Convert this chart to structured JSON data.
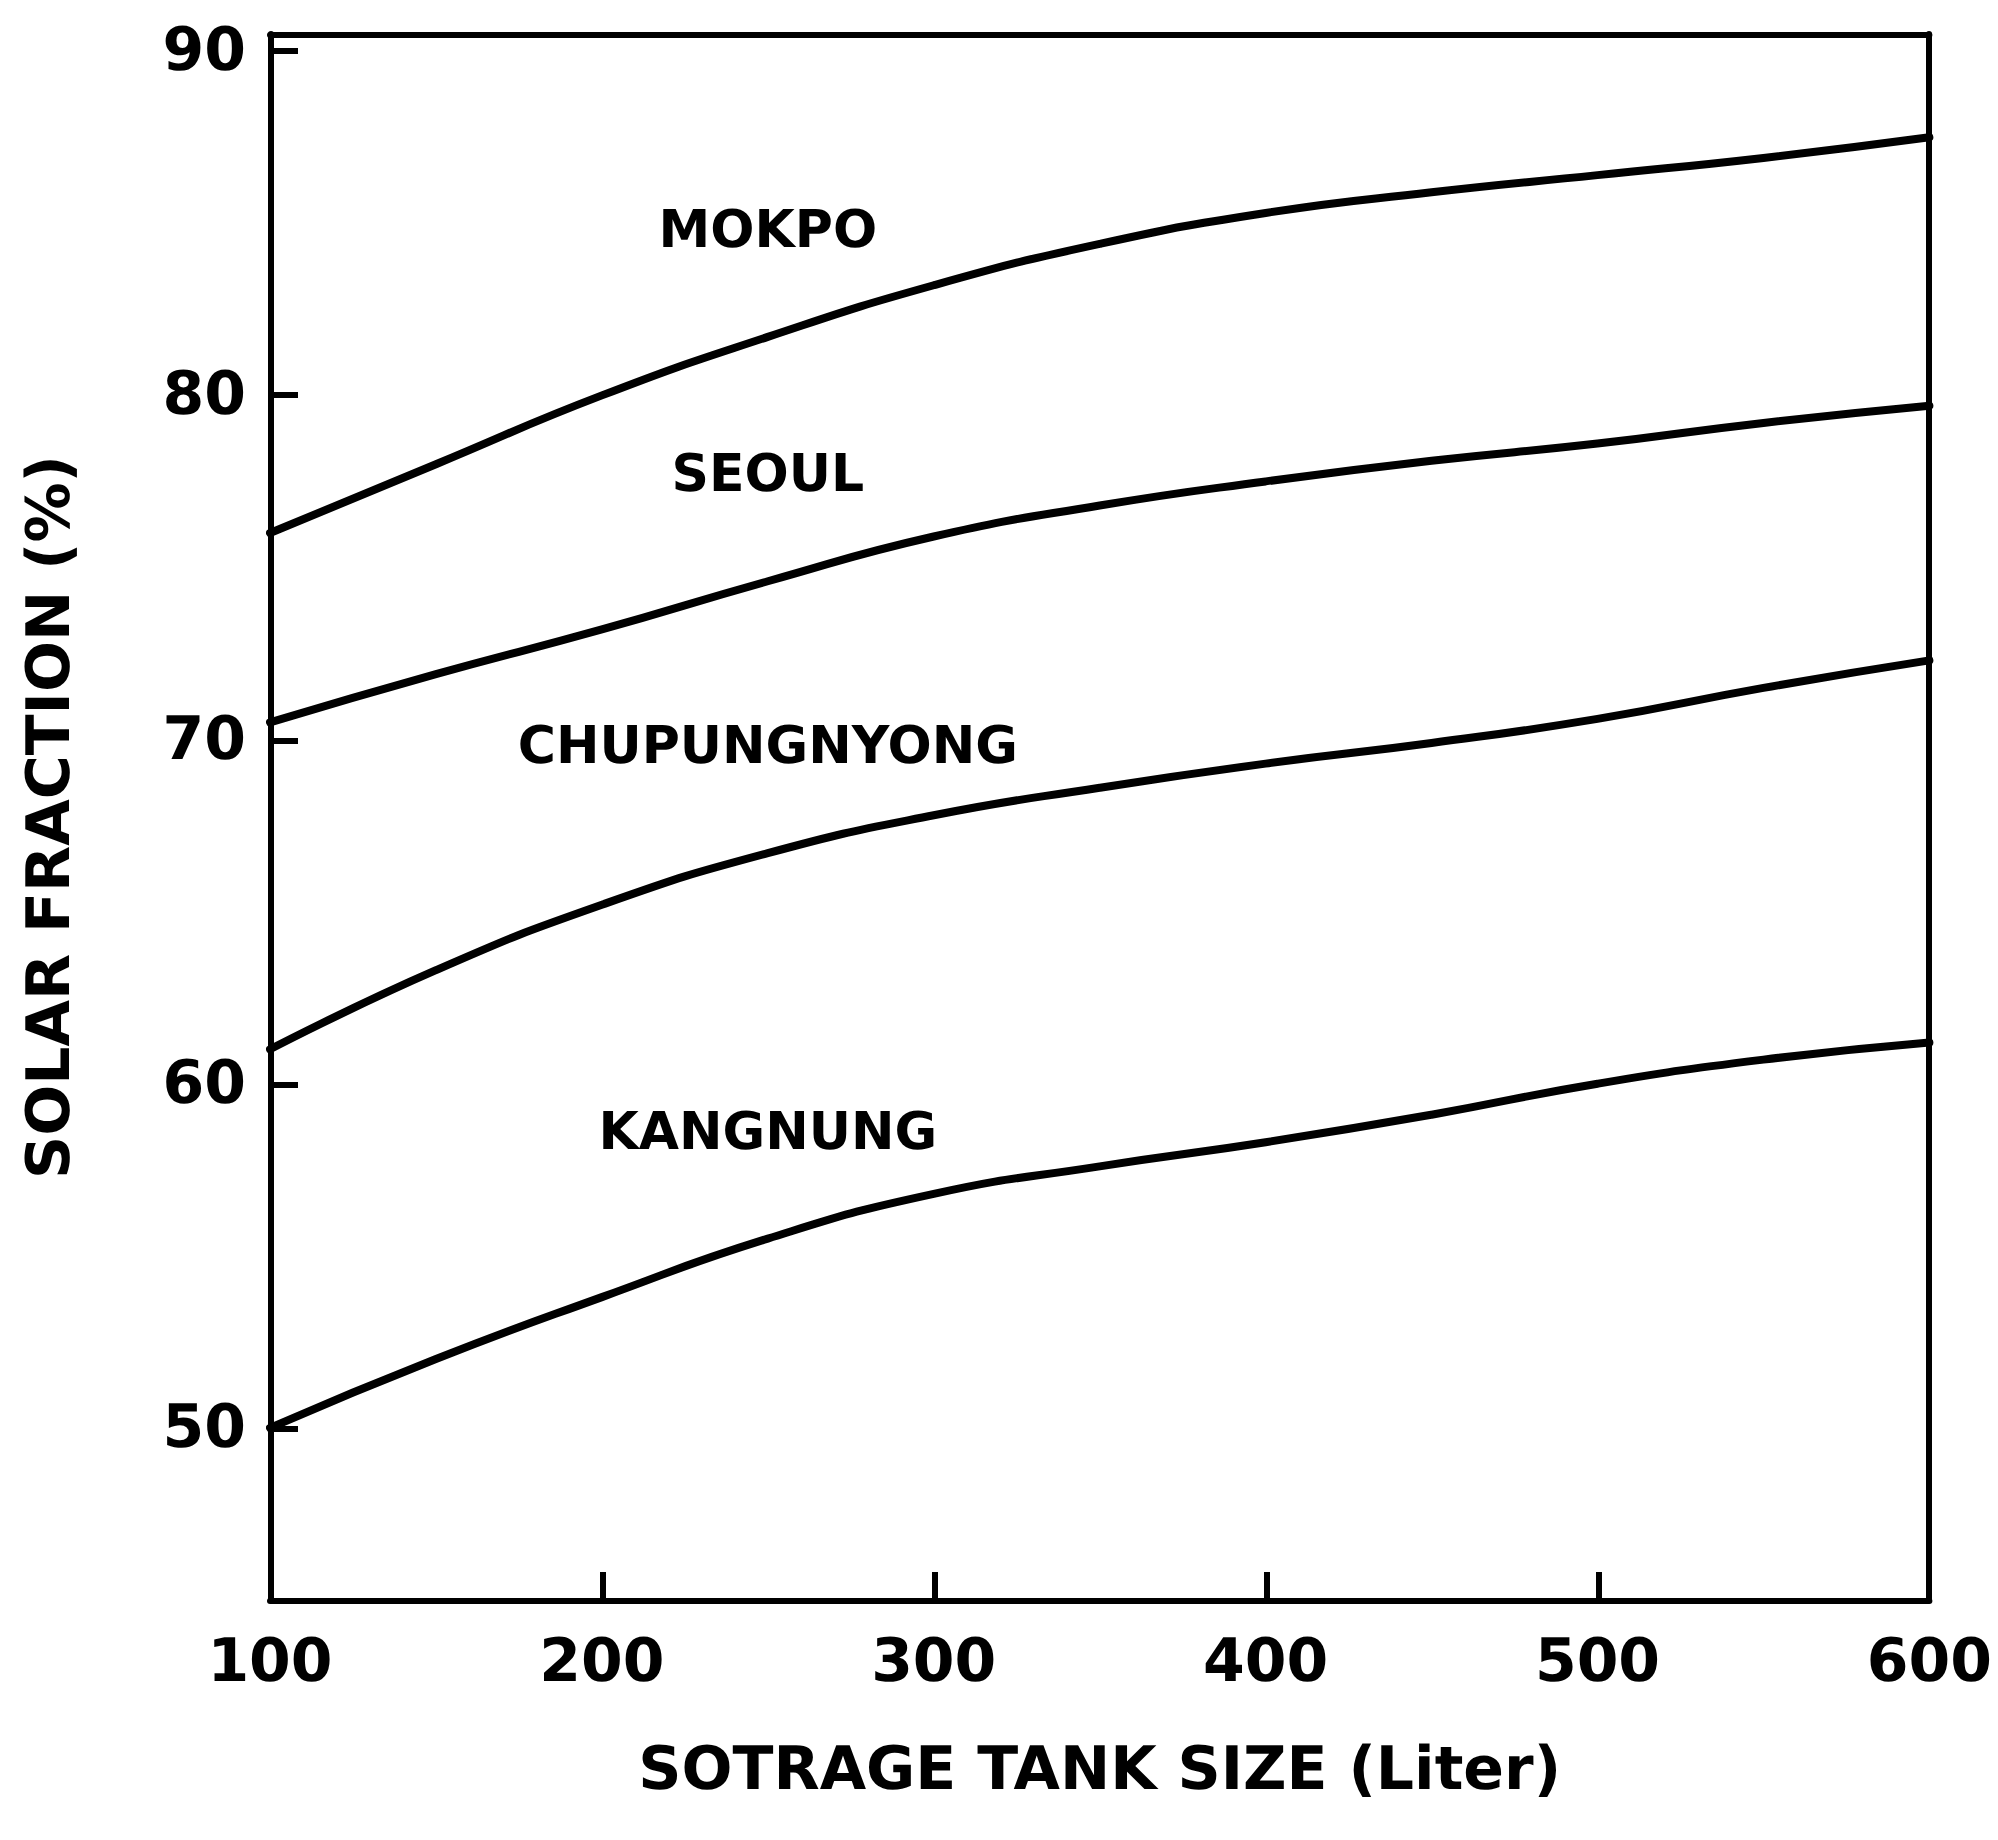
{
  "chart_data": {
    "type": "line",
    "xlabel": "SOTRAGE TANK SIZE (Liter)",
    "ylabel": "SOLAR FRACTION (%)",
    "x": [
      100,
      150,
      200,
      250,
      300,
      350,
      400,
      450,
      500,
      550,
      600
    ],
    "series": [
      {
        "name": "MOKPO",
        "color": "#000000",
        "values": [
          76,
          78,
          80,
          81.7,
          83.2,
          84.4,
          85.3,
          85.9,
          86.4,
          86.9,
          87.5
        ]
      },
      {
        "name": "SEOUL",
        "color": "#000000",
        "values": [
          70.5,
          71.9,
          73.2,
          74.6,
          75.9,
          76.8,
          77.5,
          78.1,
          78.6,
          79.2,
          79.7
        ]
      },
      {
        "name": "CHUPUNGNYONG",
        "color": "#000000",
        "values": [
          61,
          63.3,
          65.2,
          66.7,
          67.8,
          68.6,
          69.3,
          69.9,
          70.6,
          71.5,
          72.3
        ]
      },
      {
        "name": "KANGNUNG",
        "color": "#000000",
        "values": [
          50,
          52,
          53.8,
          55.5,
          56.8,
          57.6,
          58.3,
          59.1,
          60,
          60.7,
          61.2
        ]
      }
    ],
    "xlim": [
      100,
      600
    ],
    "xticks": [
      100,
      200,
      300,
      400,
      500,
      600
    ],
    "ylim": [
      45,
      90.5
    ],
    "yticks": [
      50,
      60,
      70,
      80,
      90
    ],
    "grid": false,
    "marker": "none",
    "line_style": "solid"
  }
}
